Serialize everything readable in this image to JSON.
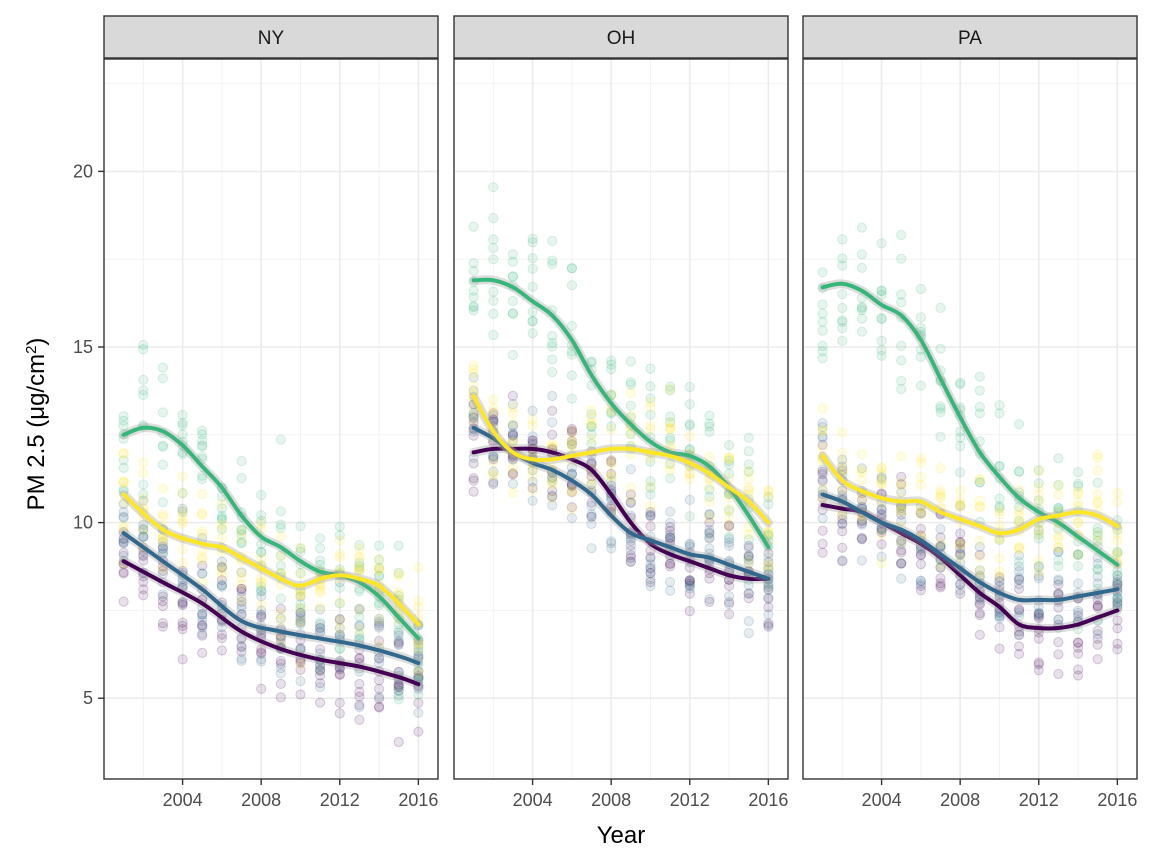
{
  "chart_data": {
    "type": "scatter",
    "facet_type": "small multiples with smoothed trend lines",
    "xlabel": "Year",
    "ylabel": "PM 2.5 (μg/cm",
    "ylabel_superscript": "2",
    "ylabel_close": ")",
    "x_ticks": [
      2004,
      2008,
      2012,
      2016
    ],
    "y_ticks": [
      5,
      10,
      15,
      20
    ],
    "xlim": [
      2000,
      2017
    ],
    "ylim": [
      2.7,
      23.2
    ],
    "grid": true,
    "legend": "none",
    "series_colors": [
      "#440154",
      "#31688e",
      "#35b779",
      "#fde725"
    ],
    "point_opacity": 0.12,
    "panels": [
      {
        "label": "NY",
        "series": [
          {
            "color": "#440154",
            "x": [
              2001,
              2003,
              2005,
              2007,
              2009,
              2011,
              2013,
              2015,
              2016
            ],
            "y": [
              8.9,
              8.3,
              7.7,
              6.9,
              6.4,
              6.1,
              5.9,
              5.6,
              5.4
            ],
            "spread": 1.0
          },
          {
            "color": "#31688e",
            "x": [
              2001,
              2003,
              2005,
              2007,
              2009,
              2011,
              2013,
              2015,
              2016
            ],
            "y": [
              9.7,
              8.9,
              8.1,
              7.2,
              6.9,
              6.7,
              6.5,
              6.2,
              6.0
            ],
            "spread": 1.1
          },
          {
            "color": "#35b779",
            "x": [
              2001,
              2002,
              2003,
              2004,
              2005,
              2006,
              2007,
              2008,
              2009,
              2010,
              2011,
              2012,
              2013,
              2014,
              2015,
              2016
            ],
            "y": [
              12.5,
              12.7,
              12.6,
              12.2,
              11.6,
              11.0,
              10.2,
              9.6,
              9.3,
              8.9,
              8.6,
              8.5,
              8.3,
              7.9,
              7.3,
              6.7
            ],
            "spread": 1.5
          },
          {
            "color": "#fde725",
            "x": [
              2001,
              2003,
              2005,
              2006,
              2007,
              2009,
              2010,
              2011,
              2012,
              2013,
              2014,
              2015,
              2016
            ],
            "y": [
              10.8,
              9.8,
              9.4,
              9.3,
              9.0,
              8.4,
              8.2,
              8.4,
              8.5,
              8.4,
              8.2,
              7.7,
              7.1
            ],
            "spread": 1.2
          }
        ]
      },
      {
        "label": "OH",
        "series": [
          {
            "color": "#440154",
            "x": [
              2001,
              2002,
              2003,
              2004,
              2005,
              2006,
              2007,
              2008,
              2009,
              2010,
              2011,
              2012,
              2013,
              2014,
              2015,
              2016
            ],
            "y": [
              12.0,
              12.1,
              12.1,
              12.1,
              12.0,
              11.8,
              11.5,
              10.8,
              10.0,
              9.4,
              9.1,
              8.9,
              8.7,
              8.5,
              8.4,
              8.4
            ],
            "spread": 1.0
          },
          {
            "color": "#31688e",
            "x": [
              2001,
              2002,
              2003,
              2004,
              2005,
              2006,
              2007,
              2008,
              2009,
              2010,
              2011,
              2012,
              2013,
              2014,
              2015,
              2016
            ],
            "y": [
              12.7,
              12.4,
              12.0,
              11.7,
              11.5,
              11.2,
              10.8,
              10.2,
              9.7,
              9.5,
              9.3,
              9.1,
              9.0,
              8.8,
              8.6,
              8.4
            ],
            "spread": 1.1
          },
          {
            "color": "#35b779",
            "x": [
              2001,
              2002,
              2003,
              2004,
              2005,
              2006,
              2007,
              2008,
              2009,
              2010,
              2011,
              2012,
              2013,
              2014,
              2015,
              2016
            ],
            "y": [
              16.9,
              16.9,
              16.7,
              16.3,
              15.9,
              15.2,
              14.2,
              13.4,
              12.8,
              12.3,
              12.0,
              11.9,
              11.6,
              11.0,
              10.2,
              9.3
            ],
            "spread": 1.5
          },
          {
            "color": "#fde725",
            "x": [
              2001,
              2002,
              2003,
              2004,
              2005,
              2006,
              2007,
              2008,
              2009,
              2010,
              2011,
              2012,
              2013,
              2014,
              2015,
              2016
            ],
            "y": [
              13.6,
              12.6,
              12.0,
              11.8,
              11.8,
              11.9,
              12.0,
              12.1,
              12.1,
              12.0,
              11.9,
              11.7,
              11.4,
              11.0,
              10.6,
              10.0
            ],
            "spread": 1.1
          }
        ]
      },
      {
        "label": "PA",
        "series": [
          {
            "color": "#440154",
            "x": [
              2001,
              2002,
              2003,
              2004,
              2005,
              2006,
              2007,
              2008,
              2009,
              2010,
              2011,
              2012,
              2013,
              2014,
              2015,
              2016
            ],
            "y": [
              10.5,
              10.4,
              10.3,
              10.0,
              9.7,
              9.4,
              9.0,
              8.5,
              8.0,
              7.6,
              7.1,
              7.0,
              7.0,
              7.1,
              7.3,
              7.5
            ],
            "spread": 1.0
          },
          {
            "color": "#31688e",
            "x": [
              2001,
              2002,
              2003,
              2004,
              2005,
              2006,
              2007,
              2008,
              2009,
              2010,
              2011,
              2012,
              2013,
              2014,
              2015,
              2016
            ],
            "y": [
              10.8,
              10.6,
              10.3,
              10.0,
              9.8,
              9.5,
              9.1,
              8.7,
              8.3,
              8.0,
              7.8,
              7.8,
              7.8,
              7.9,
              8.0,
              8.1
            ],
            "spread": 1.1
          },
          {
            "color": "#35b779",
            "x": [
              2001,
              2002,
              2003,
              2004,
              2005,
              2006,
              2007,
              2008,
              2009,
              2010,
              2011,
              2012,
              2013,
              2014,
              2015,
              2016
            ],
            "y": [
              16.7,
              16.8,
              16.6,
              16.2,
              15.9,
              15.2,
              14.1,
              13.0,
              12.0,
              11.3,
              10.7,
              10.3,
              10.0,
              9.6,
              9.2,
              8.8
            ],
            "spread": 1.5
          },
          {
            "color": "#fde725",
            "x": [
              2001,
              2002,
              2003,
              2004,
              2005,
              2006,
              2007,
              2008,
              2009,
              2010,
              2011,
              2012,
              2013,
              2014,
              2015,
              2016
            ],
            "y": [
              11.9,
              11.2,
              10.9,
              10.7,
              10.6,
              10.6,
              10.3,
              10.1,
              9.9,
              9.7,
              9.8,
              10.1,
              10.2,
              10.3,
              10.2,
              9.9
            ],
            "spread": 1.2
          }
        ]
      }
    ]
  }
}
